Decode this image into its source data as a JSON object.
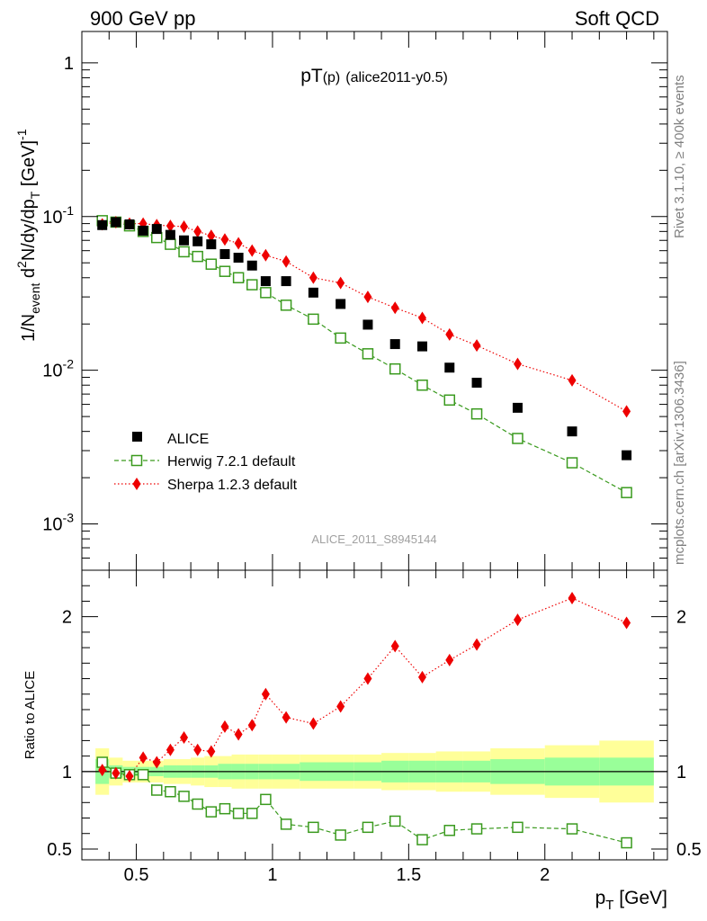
{
  "header": {
    "left": "900 GeV pp",
    "right": "Soft QCD"
  },
  "side_labels": {
    "rivet": "Rivet 3.1.10, ≥ 400k events",
    "mcplots": "mcplots.cern.ch [arXiv:1306.3436]"
  },
  "watermark": "ALICE_2011_S8945144",
  "colors": {
    "alice": "#000000",
    "herwig": "#3a9a1e",
    "sherpa": "#ee0000",
    "band_outer": "#ffff99",
    "band_inner": "#99ff99"
  },
  "chart_data": [
    {
      "type": "scatter",
      "scale": "log",
      "title_main": "pT",
      "title_sub": "(p)",
      "title_tag": "(alice2011-y0.5)",
      "ylabel_parts": [
        "1/N",
        "event",
        " d",
        "2",
        "N/dy/dp",
        "T",
        " [GeV]",
        "-1"
      ],
      "ylim": [
        0.0005,
        1.6
      ],
      "yticks": [
        {
          "value": 1,
          "base": "1",
          "exp": ""
        },
        {
          "value": 0.1,
          "base": "10",
          "exp": "-1"
        },
        {
          "value": 0.01,
          "base": "10",
          "exp": "-2"
        },
        {
          "value": 0.001,
          "base": "10",
          "exp": "-3"
        }
      ],
      "legend": [
        {
          "key": "alice",
          "label": "ALICE"
        },
        {
          "key": "herwig",
          "label": "Herwig 7.2.1 default"
        },
        {
          "key": "sherpa",
          "label": "Sherpa 1.2.3 default"
        }
      ],
      "x": [
        0.375,
        0.425,
        0.475,
        0.525,
        0.575,
        0.625,
        0.675,
        0.725,
        0.775,
        0.825,
        0.875,
        0.925,
        0.975,
        1.05,
        1.15,
        1.25,
        1.35,
        1.45,
        1.55,
        1.65,
        1.75,
        1.9,
        2.1,
        2.3
      ],
      "series": [
        {
          "key": "alice",
          "name": "ALICE",
          "values": [
            0.088,
            0.092,
            0.089,
            0.081,
            0.083,
            0.076,
            0.07,
            0.069,
            0.066,
            0.057,
            0.054,
            0.048,
            0.038,
            0.038,
            0.032,
            0.027,
            0.0198,
            0.0148,
            0.0143,
            0.0104,
            0.0083,
            0.0057,
            0.004,
            0.0028
          ]
        },
        {
          "key": "herwig",
          "name": "Herwig 7.2.1 default",
          "values": [
            0.094,
            0.092,
            0.087,
            0.08,
            0.073,
            0.066,
            0.059,
            0.055,
            0.049,
            0.044,
            0.04,
            0.036,
            0.032,
            0.0265,
            0.0215,
            0.0162,
            0.0128,
            0.0102,
            0.008,
            0.0064,
            0.0052,
            0.0036,
            0.0025,
            0.0016
          ]
        },
        {
          "key": "sherpa",
          "name": "Sherpa 1.2.3 default",
          "values": [
            0.089,
            0.092,
            0.09,
            0.09,
            0.088,
            0.087,
            0.086,
            0.08,
            0.075,
            0.071,
            0.067,
            0.06,
            0.056,
            0.051,
            0.04,
            0.037,
            0.03,
            0.0255,
            0.0219,
            0.0171,
            0.0145,
            0.011,
            0.0086,
            0.0054
          ]
        }
      ]
    },
    {
      "type": "line",
      "scale": "linear",
      "ylabel": "Ratio to ALICE",
      "xlabel_main": "p",
      "xlabel_sub": "T",
      "xlabel_unit": " [GeV]",
      "xlim": [
        0.3,
        2.45
      ],
      "ylim": [
        0.43,
        2.3
      ],
      "xticks": [
        {
          "value": 0.5,
          "label": "0.5"
        },
        {
          "value": 1,
          "label": "1"
        },
        {
          "value": 1.5,
          "label": "1.5"
        },
        {
          "value": 2,
          "label": "2"
        }
      ],
      "yticks": [
        {
          "value": 0.5,
          "label": "0.5"
        },
        {
          "value": 1,
          "label": "1"
        },
        {
          "value": 2,
          "label": "2"
        }
      ],
      "x": [
        0.375,
        0.425,
        0.475,
        0.525,
        0.575,
        0.625,
        0.675,
        0.725,
        0.775,
        0.825,
        0.875,
        0.925,
        0.975,
        1.05,
        1.15,
        1.25,
        1.35,
        1.45,
        1.55,
        1.65,
        1.75,
        1.9,
        2.1,
        2.3
      ],
      "bin_edges": [
        0.35,
        0.4,
        0.45,
        0.5,
        0.55,
        0.6,
        0.65,
        0.7,
        0.75,
        0.8,
        0.85,
        0.9,
        0.95,
        1.0,
        1.1,
        1.2,
        1.3,
        1.4,
        1.5,
        1.6,
        1.7,
        1.8,
        2.0,
        2.2,
        2.4
      ],
      "band_outer": [
        0.15,
        0.09,
        0.07,
        0.07,
        0.07,
        0.08,
        0.08,
        0.09,
        0.1,
        0.1,
        0.11,
        0.11,
        0.11,
        0.11,
        0.11,
        0.11,
        0.11,
        0.12,
        0.12,
        0.13,
        0.13,
        0.15,
        0.17,
        0.2
      ],
      "band_inner": [
        0.08,
        0.04,
        0.03,
        0.03,
        0.03,
        0.04,
        0.04,
        0.04,
        0.04,
        0.05,
        0.05,
        0.05,
        0.05,
        0.05,
        0.06,
        0.06,
        0.06,
        0.07,
        0.07,
        0.07,
        0.07,
        0.08,
        0.09,
        0.09
      ],
      "series": [
        {
          "key": "herwig",
          "name": "Herwig 7.2.1 default",
          "values": [
            1.06,
            0.99,
            0.98,
            0.98,
            0.88,
            0.87,
            0.84,
            0.79,
            0.74,
            0.76,
            0.73,
            0.73,
            0.82,
            0.66,
            0.64,
            0.59,
            0.64,
            0.68,
            0.56,
            0.62,
            0.63,
            0.64,
            0.63,
            0.54
          ]
        },
        {
          "key": "sherpa",
          "name": "Sherpa 1.2.3 default",
          "values": [
            1.01,
            0.99,
            0.97,
            1.09,
            1.06,
            1.14,
            1.22,
            1.14,
            1.13,
            1.29,
            1.24,
            1.3,
            1.5,
            1.35,
            1.31,
            1.42,
            1.6,
            1.81,
            1.61,
            1.72,
            1.82,
            1.98,
            2.12,
            1.96
          ]
        }
      ]
    }
  ]
}
